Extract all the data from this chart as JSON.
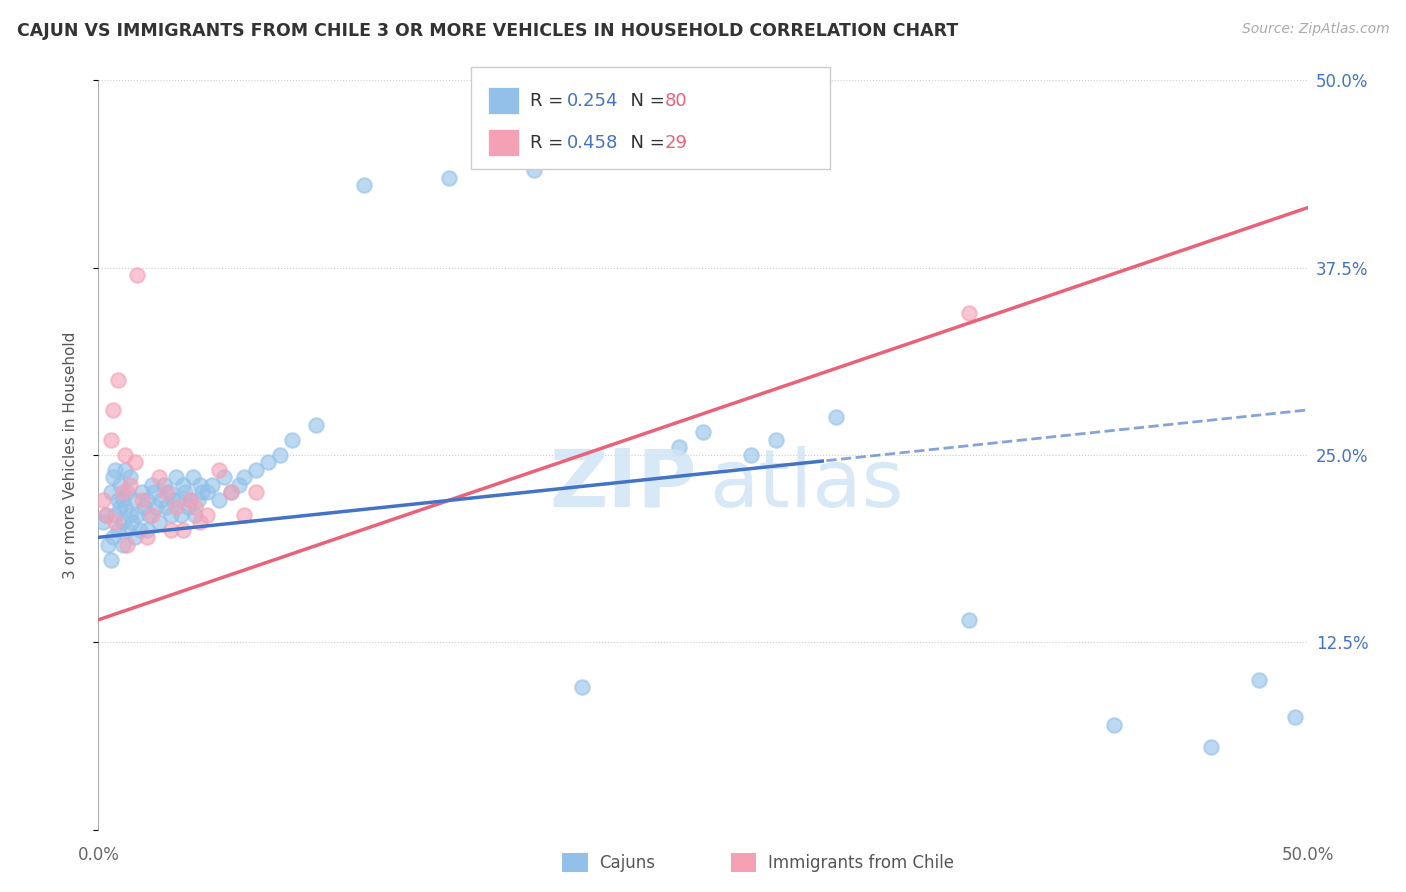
{
  "title": "CAJUN VS IMMIGRANTS FROM CHILE 3 OR MORE VEHICLES IN HOUSEHOLD CORRELATION CHART",
  "source": "Source: ZipAtlas.com",
  "ylabel": "3 or more Vehicles in Household",
  "xlim": [
    0.0,
    50.0
  ],
  "ylim": [
    0.0,
    50.0
  ],
  "cajun_color": "#92c0e8",
  "chile_color": "#f4a0b5",
  "cajun_R": 0.254,
  "cajun_N": 80,
  "chile_R": 0.458,
  "chile_N": 29,
  "cajun_line_color": "#4472c4",
  "chile_line_color": "#e8637a",
  "r_color": "#4472c4",
  "n_color": "#e8637a",
  "legend_label_cajun": "Cajuns",
  "legend_label_chile": "Immigrants from Chile",
  "blue_line_intercept": 19.5,
  "blue_line_slope": 0.17,
  "pink_line_intercept": 14.0,
  "pink_line_slope": 0.55,
  "blue_solid_end": 30.0,
  "watermark_zip_color": "#d0e4f5",
  "watermark_atlas_color": "#d0e4f5",
  "cajun_x": [
    0.2,
    0.3,
    0.4,
    0.5,
    0.5,
    0.6,
    0.6,
    0.7,
    0.7,
    0.8,
    0.8,
    0.9,
    0.9,
    1.0,
    1.0,
    1.0,
    1.1,
    1.1,
    1.2,
    1.2,
    1.3,
    1.3,
    1.4,
    1.5,
    1.5,
    1.6,
    1.7,
    1.8,
    1.9,
    2.0,
    2.0,
    2.1,
    2.2,
    2.3,
    2.4,
    2.5,
    2.6,
    2.7,
    2.8,
    2.9,
    3.0,
    3.1,
    3.2,
    3.3,
    3.4,
    3.5,
    3.6,
    3.7,
    3.8,
    3.9,
    4.0,
    4.1,
    4.2,
    4.3,
    4.5,
    4.7,
    5.0,
    5.2,
    5.5,
    5.8,
    6.0,
    6.5,
    7.0,
    7.5,
    8.0,
    9.0,
    11.0,
    14.5,
    18.0,
    20.0,
    25.0,
    28.0,
    30.5,
    36.0,
    42.0,
    46.0,
    48.0,
    49.5,
    24.0,
    27.0
  ],
  "cajun_y": [
    20.5,
    21.0,
    19.0,
    22.5,
    18.0,
    23.5,
    19.5,
    24.0,
    21.0,
    22.0,
    20.0,
    21.5,
    23.0,
    22.0,
    20.5,
    19.0,
    21.5,
    24.0,
    20.0,
    22.5,
    21.0,
    23.5,
    20.5,
    22.0,
    19.5,
    21.0,
    20.0,
    22.5,
    21.5,
    22.0,
    20.0,
    21.0,
    23.0,
    22.5,
    21.5,
    20.5,
    22.0,
    23.0,
    21.5,
    22.5,
    21.0,
    22.0,
    23.5,
    22.0,
    21.0,
    23.0,
    22.5,
    21.5,
    22.0,
    23.5,
    21.0,
    22.0,
    23.0,
    22.5,
    22.5,
    23.0,
    22.0,
    23.5,
    22.5,
    23.0,
    23.5,
    24.0,
    24.5,
    25.0,
    26.0,
    27.0,
    43.0,
    43.5,
    44.0,
    9.5,
    26.5,
    26.0,
    27.5,
    14.0,
    7.0,
    5.5,
    10.0,
    7.5,
    25.5,
    25.0
  ],
  "chile_x": [
    0.2,
    0.3,
    0.5,
    0.6,
    0.7,
    0.8,
    1.0,
    1.1,
    1.2,
    1.3,
    1.5,
    1.8,
    2.0,
    2.2,
    2.5,
    2.8,
    3.0,
    3.2,
    3.5,
    3.8,
    4.0,
    4.2,
    4.5,
    5.0,
    5.5,
    6.0,
    6.5,
    36.0,
    1.6
  ],
  "chile_y": [
    22.0,
    21.0,
    26.0,
    28.0,
    20.5,
    30.0,
    22.5,
    25.0,
    19.0,
    23.0,
    24.5,
    22.0,
    19.5,
    21.0,
    23.5,
    22.5,
    20.0,
    21.5,
    20.0,
    22.0,
    21.5,
    20.5,
    21.0,
    24.0,
    22.5,
    21.0,
    22.5,
    34.5,
    37.0
  ]
}
